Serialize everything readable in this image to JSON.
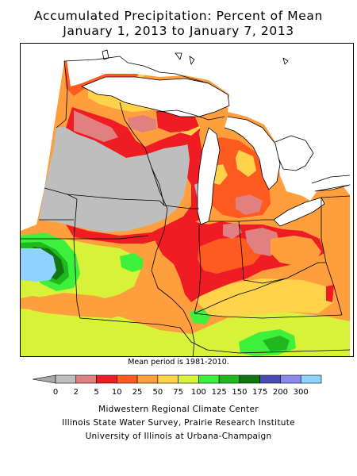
{
  "title_line1": "Accumulated Precipitation: Percent of Mean",
  "title_line2": "January 1, 2013 to January 7, 2013",
  "mean_period_note": "Mean period is 1981-2010.",
  "legend": {
    "labels": [
      "0",
      "2",
      "5",
      "10",
      "25",
      "50",
      "75",
      "100",
      "125",
      "150",
      "175",
      "200",
      "300"
    ],
    "colors": [
      "#bebebe",
      "#e08080",
      "#ef1c24",
      "#ff5a1f",
      "#ff9e3d",
      "#ffd24a",
      "#d8f23a",
      "#3cf03c",
      "#1fb81f",
      "#117711",
      "#4a4ab0",
      "#8a8aee",
      "#8fd2ff"
    ],
    "arrow_color": "#a8a8a8"
  },
  "credits": [
    "Midwestern Regional Climate Center",
    "Illinois State Water Survey, Prairie Research Institute",
    "University of Illinois at Urbana-Champaign"
  ],
  "map_colors": {
    "gray": "#bebebe",
    "pink": "#e08080",
    "red": "#ef1c24",
    "orange_red": "#ff5a1f",
    "orange": "#ff9e3d",
    "yellow_orange": "#ffd24a",
    "yellow_green": "#d8f23a",
    "green": "#3cf03c",
    "mid_green": "#1fb81f",
    "dark_green": "#117711",
    "blue": "#8fd2ff",
    "lake": "#ffffff"
  }
}
